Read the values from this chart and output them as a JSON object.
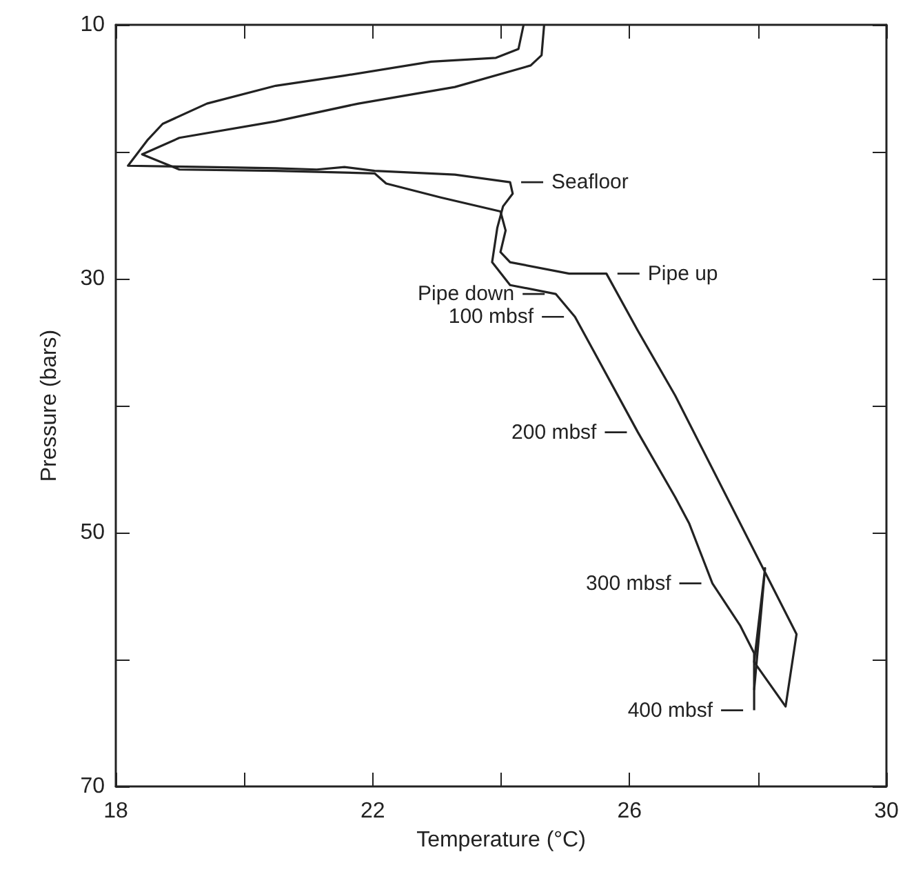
{
  "chart_data": {
    "type": "line",
    "xlabel": "Temperature (°C)",
    "ylabel": "Pressure (bars)",
    "xlim": [
      18,
      30
    ],
    "xticks": [
      18,
      {
        "value": 20,
        "label": null
      },
      22,
      {
        "value": 24,
        "label": null
      },
      26,
      {
        "value": 28,
        "label": null
      },
      30
    ],
    "ylim": [
      70,
      10
    ],
    "yticks": [
      10,
      {
        "value": 20,
        "label": null
      },
      30,
      {
        "value": 40,
        "label": null
      },
      50,
      {
        "value": 60,
        "label": null
      },
      70
    ],
    "grid": false,
    "marker": "none",
    "line_style": "solid",
    "series": [
      {
        "color": "#222222",
        "x": [
          24.35,
          24.27,
          23.92,
          22.91,
          21.56,
          20.49,
          19.42,
          18.73,
          18.49,
          18.19,
          19.42,
          20.49,
          21.13,
          21.56,
          22.03,
          23.28,
          24.14,
          24.18,
          24.03,
          23.94,
          23.86,
          24.14,
          24.85,
          25.15,
          25.42,
          26.13,
          26.71,
          26.93,
          27.29,
          27.72,
          27.94,
          27.94
        ],
        "values": [
          10,
          11.9,
          12.6,
          12.9,
          14.0,
          14.8,
          16.2,
          17.8,
          19.1,
          21.1,
          21.2,
          21.3,
          21.4,
          21.2,
          21.5,
          21.8,
          22.4,
          23.3,
          24.3,
          26.0,
          28.7,
          30.5,
          31.2,
          33.0,
          35.5,
          42.1,
          47.2,
          49.3,
          54.0,
          57.3,
          59.5,
          64.0
        ]
      },
      {
        "color": "#222222",
        "x": [
          24.67,
          24.63,
          24.46,
          23.28,
          21.78,
          20.49,
          18.99,
          18.41,
          18.99,
          20.49,
          22.03,
          22.21,
          23.06,
          23.99,
          24.07,
          23.99,
          24.14,
          25.06,
          25.64,
          26.13,
          26.71,
          28.6,
          28.43,
          27.94,
          28.11,
          27.94
        ],
        "values": [
          10,
          12.4,
          13.2,
          14.9,
          16.2,
          17.6,
          18.9,
          20.2,
          21.4,
          21.5,
          21.7,
          22.5,
          23.6,
          24.7,
          26.2,
          27.9,
          28.7,
          29.6,
          29.6,
          34.1,
          39.2,
          58.0,
          63.7,
          60.2,
          52.8,
          62.4
        ]
      }
    ],
    "annotations": [
      {
        "text": "Seafloor",
        "x": 24.14,
        "y": 22.4
      },
      {
        "text": "Pipe up",
        "x": 25.64,
        "y": 29.6
      },
      {
        "text": "Pipe down",
        "x": 24.85,
        "y": 31.2
      },
      {
        "text": "100 mbsf",
        "x": 25.15,
        "y": 33.0
      },
      {
        "text": "200 mbsf",
        "x": 26.13,
        "y": 42.1
      },
      {
        "text": "300 mbsf",
        "x": 27.29,
        "y": 54.0
      },
      {
        "text": "400 mbsf",
        "x": 27.94,
        "y": 64.0
      }
    ]
  }
}
